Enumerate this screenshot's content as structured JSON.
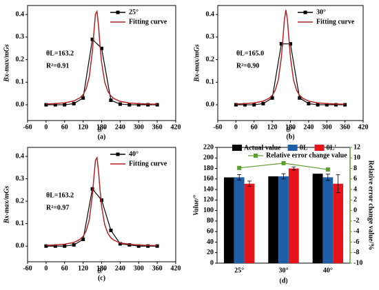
{
  "chart_data": [
    {
      "type": "line",
      "caption": "(a)",
      "xlabel": "θ/°",
      "ylabel": "Bx-max/mGs",
      "annotations": [
        "θL=163.2",
        "R²=0.91"
      ],
      "xlim": [
        -60,
        420
      ],
      "xticks": [
        -60,
        0,
        60,
        120,
        180,
        240,
        300,
        360,
        420
      ],
      "ylim": [
        -0.07,
        0.44
      ],
      "yticks": [
        {
          "value": 0,
          "label": "0.0"
        },
        0.1,
        0.2,
        0.3,
        0.4
      ],
      "series": [
        {
          "name": "25°",
          "color": "#000000",
          "marker": "square",
          "x": [
            0,
            30,
            60,
            90,
            120,
            150,
            180,
            210,
            240,
            270,
            300,
            330,
            360
          ],
          "values": [
            0,
            0,
            0,
            0.005,
            0.03,
            0.29,
            0.25,
            0.02,
            0.003,
            0,
            0,
            0,
            0
          ]
        },
        {
          "name": "Fitting curve",
          "color": "#b22222",
          "x": [
            0,
            30,
            60,
            90,
            110,
            120,
            130,
            140,
            150,
            155,
            160,
            165,
            170,
            175,
            180,
            190,
            200,
            210,
            220,
            240,
            270,
            300,
            330,
            360
          ],
          "values": [
            0.0035,
            0.0053,
            0.0087,
            0.017,
            0.031,
            0.045,
            0.071,
            0.124,
            0.237,
            0.323,
            0.402,
            0.414,
            0.348,
            0.259,
            0.186,
            0.1,
            0.06,
            0.039,
            0.027,
            0.015,
            0.008,
            0.005,
            0.0034,
            0.0024
          ]
        }
      ]
    },
    {
      "type": "line",
      "caption": "(b)",
      "xlabel": "θ/°",
      "ylabel": "Bx-max/mGs",
      "annotations": [
        "θL=165.0",
        "R²=0.90"
      ],
      "xlim": [
        -60,
        420
      ],
      "xticks": [
        -60,
        0,
        60,
        120,
        180,
        240,
        300,
        360,
        420
      ],
      "ylim": [
        -0.07,
        0.44
      ],
      "yticks": [
        {
          "value": 0,
          "label": "0.0"
        },
        0.1,
        0.2,
        0.3,
        0.4
      ],
      "series": [
        {
          "name": "30°",
          "color": "#000000",
          "marker": "square",
          "x": [
            0,
            30,
            60,
            90,
            120,
            150,
            180,
            210,
            240,
            270,
            300,
            330,
            360
          ],
          "values": [
            0,
            0,
            0,
            0.005,
            0.03,
            0.27,
            0.27,
            0.03,
            0.005,
            0,
            0,
            0,
            0
          ]
        },
        {
          "name": "Fitting curve",
          "color": "#b22222",
          "x": [
            0,
            30,
            60,
            90,
            110,
            120,
            130,
            140,
            150,
            155,
            160,
            165,
            170,
            175,
            180,
            190,
            200,
            210,
            220,
            240,
            270,
            300,
            330,
            360
          ],
          "values": [
            0.0034,
            0.0051,
            0.0084,
            0.016,
            0.029,
            0.042,
            0.065,
            0.111,
            0.21,
            0.291,
            0.378,
            0.42,
            0.378,
            0.291,
            0.21,
            0.111,
            0.065,
            0.042,
            0.029,
            0.016,
            0.0084,
            0.0051,
            0.0034,
            0.0025
          ]
        }
      ]
    },
    {
      "type": "line",
      "caption": "(c)",
      "xlabel": "θ/°",
      "ylabel": "Bx-max/mGs",
      "annotations": [
        "θL=163.2",
        "R²=0.97"
      ],
      "xlim": [
        -60,
        420
      ],
      "xticks": [
        -60,
        0,
        60,
        120,
        180,
        240,
        300,
        360,
        420
      ],
      "ylim": [
        -0.07,
        0.44
      ],
      "yticks": [
        {
          "value": 0,
          "label": "0.0"
        },
        0.1,
        0.2,
        0.3,
        0.4
      ],
      "series": [
        {
          "name": "40°",
          "color": "#000000",
          "marker": "square",
          "x": [
            0,
            30,
            60,
            90,
            120,
            150,
            180,
            210,
            240,
            270,
            300,
            330,
            360
          ],
          "values": [
            0,
            0,
            0,
            0.005,
            0.03,
            0.255,
            0.205,
            0.07,
            0.01,
            0.005,
            0,
            0,
            0
          ]
        },
        {
          "name": "Fitting curve",
          "color": "#b22222",
          "x": [
            0,
            30,
            60,
            90,
            110,
            120,
            130,
            140,
            150,
            155,
            160,
            165,
            170,
            175,
            180,
            190,
            200,
            210,
            220,
            240,
            270,
            300,
            330,
            360
          ],
          "values": [
            0.0033,
            0.005,
            0.0083,
            0.016,
            0.03,
            0.043,
            0.068,
            0.118,
            0.226,
            0.308,
            0.383,
            0.394,
            0.331,
            0.247,
            0.177,
            0.095,
            0.057,
            0.037,
            0.026,
            0.014,
            0.008,
            0.005,
            0.003,
            0.002
          ]
        }
      ]
    },
    {
      "type": "bar",
      "caption": "(d)",
      "ylabel": "Value/°",
      "y2label": "Relative error change value/%",
      "y2color": "#5aa02c",
      "categories": [
        "25°",
        "30°",
        "40°"
      ],
      "ylim": [
        0,
        220
      ],
      "yticks": [
        0,
        20,
        40,
        60,
        80,
        100,
        120,
        140,
        160,
        180,
        200,
        220
      ],
      "y2lim": [
        -10,
        12
      ],
      "y2ticks": [
        -10,
        -8,
        -6,
        -4,
        -2,
        0,
        2,
        4,
        6,
        8,
        10,
        12
      ],
      "series": [
        {
          "name": "Actual value",
          "color": "#000000",
          "values": [
            163,
            165,
            170
          ]
        },
        {
          "name": "θL",
          "color": "#1f5fa8",
          "values": [
            163.2,
            165.0,
            163.2
          ],
          "errors": [
            5,
            5,
            6
          ]
        },
        {
          "name": "θL′",
          "color": "#e8141b",
          "values": [
            151,
            180,
            151
          ],
          "errors": [
            5,
            3,
            17
          ]
        },
        {
          "name": "Relative error change value",
          "color": "#5aa02c",
          "axis": "y2",
          "values": [
            8.1,
            9,
            7.8
          ]
        }
      ]
    }
  ]
}
